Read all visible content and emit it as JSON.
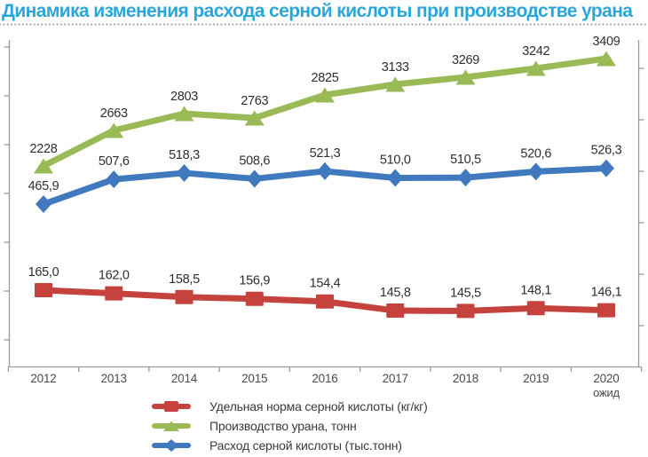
{
  "title": "Динамика изменения расхода серной кислоты при производстве урана",
  "chart_data": {
    "type": "line",
    "categories": [
      "2012",
      "2013",
      "2014",
      "2015",
      "2016",
      "2017",
      "2018",
      "2019",
      "2020"
    ],
    "category_note": {
      "index": 8,
      "text": "ожид"
    },
    "series": [
      {
        "name": "Удельная норма серной кислоты (кг/кг)",
        "marker": "square",
        "color": "#c5433c",
        "values": [
          165.0,
          162.0,
          158.5,
          156.9,
          154.4,
          145.8,
          145.5,
          148.1,
          146.1
        ],
        "labels": [
          "165,0",
          "162,0",
          "158,5",
          "156,9",
          "154,4",
          "145,8",
          "145,5",
          "148,1",
          "146,1"
        ]
      },
      {
        "name": "Производство урана, тонн",
        "marker": "triangle",
        "color": "#99ba55",
        "values": [
          2228,
          2663,
          2803,
          2763,
          2825,
          3133,
          3269,
          3242,
          3409
        ],
        "labels": [
          "2228",
          "2663",
          "2803",
          "2763",
          "2825",
          "3133",
          "3269",
          "3242",
          "3409"
        ]
      },
      {
        "name": "Расход серной кислоты (тыс.тонн)",
        "marker": "diamond",
        "color": "#4079be",
        "values": [
          465.9,
          507.6,
          518.3,
          508.6,
          521.3,
          510.0,
          510.5,
          520.6,
          526.3
        ],
        "labels": [
          "465,9",
          "507,6",
          "518,3",
          "508,6",
          "521,3",
          "510,0",
          "510,5",
          "520,6",
          "526,3"
        ]
      }
    ],
    "legend_position": "bottom-left",
    "grid": false,
    "axes": {
      "left_axis_labels_hidden": true,
      "right_axis_labels_hidden": true,
      "x_labels_visible": true
    }
  },
  "colors": {
    "title": "#2ba6d9",
    "label_text": "#2e2e2e",
    "axis": "#9a9a9a",
    "tick_label": "#4a4a4a",
    "legend_text": "#3a3a3a",
    "background": "#ffffff"
  }
}
